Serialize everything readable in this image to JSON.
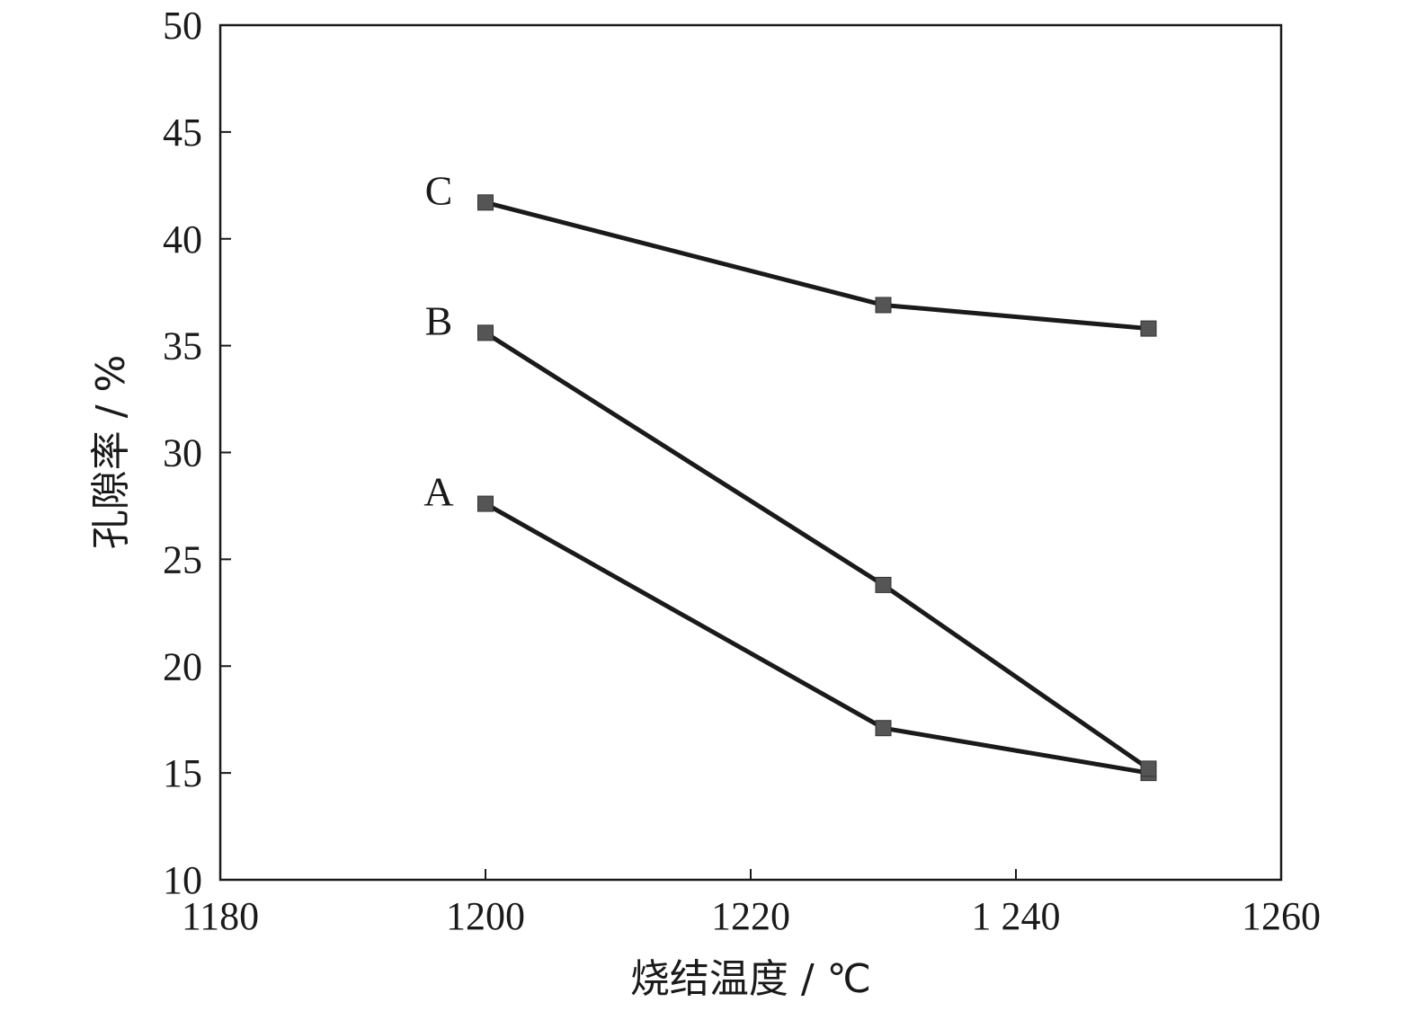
{
  "chart_data": {
    "type": "line",
    "title": "",
    "xlabel": "烧结温度 / ℃",
    "ylabel": "孔隙率 / %",
    "xlim": [
      1180,
      1260
    ],
    "ylim": [
      10,
      50
    ],
    "x_ticks": [
      1180,
      1200,
      1220,
      1240,
      1260
    ],
    "x_tick_labels": [
      "1180",
      "1200",
      "1220",
      "1 240",
      "1260"
    ],
    "y_ticks": [
      10,
      15,
      20,
      25,
      30,
      35,
      40,
      45,
      50
    ],
    "y_tick_labels": [
      "10",
      "15",
      "20",
      "25",
      "30",
      "35",
      "40",
      "45",
      "50"
    ],
    "grid": false,
    "legend": "none",
    "colors": {
      "line": "#1a1a1a",
      "marker": "#555555",
      "axis": "#1a1a1a"
    },
    "x": [
      1200,
      1230,
      1250
    ],
    "series": [
      {
        "name": "A",
        "values": [
          27.6,
          17.1,
          15.0
        ]
      },
      {
        "name": "B",
        "values": [
          35.6,
          23.8,
          15.2
        ]
      },
      {
        "name": "C",
        "values": [
          41.7,
          36.9,
          35.8
        ]
      }
    ]
  }
}
